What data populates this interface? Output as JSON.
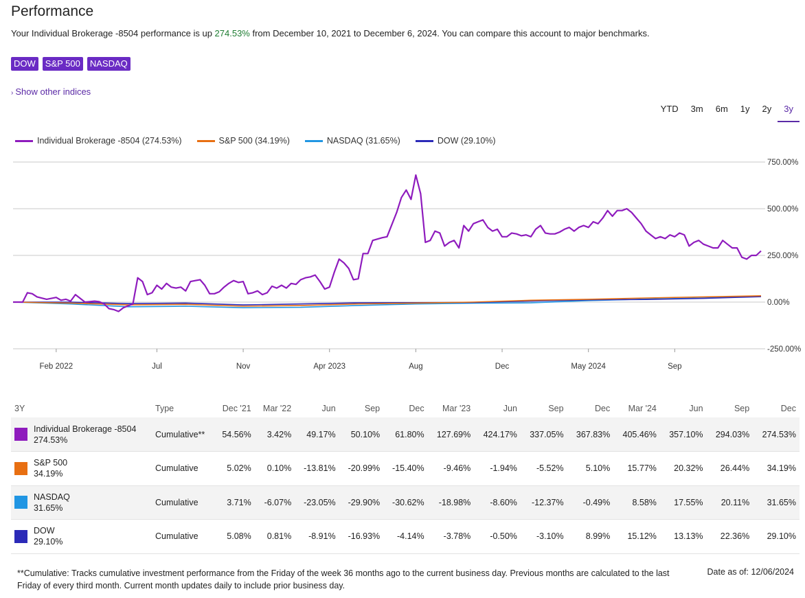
{
  "page": {
    "title": "Performance",
    "summary_prefix": "Your Individual Brokerage -8504 performance is up ",
    "summary_pct": "274.53%",
    "summary_suffix": " from December 10, 2021 to December 6, 2024. You can compare this account to major benchmarks.",
    "show_other": "Show other indices",
    "footnote": "**Cumulative: Tracks cumulative investment performance from the Friday of the week 36 months ago to the current business day. Previous months are calculated to the last Friday of every third month. Current month updates daily to include prior business day.",
    "date_as_of": "Date as of: 12/06/2024"
  },
  "chips": [
    "DOW",
    "S&P 500",
    "NASDAQ"
  ],
  "periods": [
    {
      "label": "YTD",
      "active": false
    },
    {
      "label": "3m",
      "active": false
    },
    {
      "label": "6m",
      "active": false
    },
    {
      "label": "1y",
      "active": false
    },
    {
      "label": "2y",
      "active": false
    },
    {
      "label": "3y",
      "active": true
    }
  ],
  "colors": {
    "account": "#8e1bbd",
    "sp500": "#e86f12",
    "nasdaq": "#2196e3",
    "dow": "#2b2ab8",
    "grid": "#c8c8c8"
  },
  "chart_data": {
    "type": "line",
    "yaxis": {
      "min": -250,
      "max": 750,
      "ticks": [
        750,
        500,
        250,
        0,
        -250
      ],
      "tick_labels": [
        "750.00%",
        "500.00%",
        "250.00%",
        "0.00%",
        "-250.00%"
      ]
    },
    "xaxis": {
      "min": 0,
      "max": 156,
      "ticks": [
        9,
        30,
        48,
        66,
        84,
        102,
        120,
        138
      ],
      "tick_labels": [
        "Feb 2022",
        "Jul",
        "Nov",
        "Apr 2023",
        "Aug",
        "Dec",
        "May 2024",
        "Sep"
      ]
    },
    "legend": [
      {
        "key": "account",
        "label": "Individual Brokerage -8504 (274.53%)"
      },
      {
        "key": "sp500",
        "label": "S&P 500 (34.19%)"
      },
      {
        "key": "nasdaq",
        "label": "NASDAQ (31.65%)"
      },
      {
        "key": "dow",
        "label": "DOW (29.10%)"
      }
    ],
    "series": [
      {
        "key": "account",
        "name": "Individual Brokerage -8504",
        "points": [
          [
            0,
            0
          ],
          [
            2,
            0
          ],
          [
            3,
            50
          ],
          [
            4,
            45
          ],
          [
            5,
            28
          ],
          [
            7,
            15
          ],
          [
            9,
            25
          ],
          [
            10,
            10
          ],
          [
            11,
            15
          ],
          [
            12,
            5
          ],
          [
            13,
            40
          ],
          [
            15,
            0
          ],
          [
            17,
            5
          ],
          [
            18,
            2
          ],
          [
            19,
            -10
          ],
          [
            20,
            -35
          ],
          [
            21,
            -40
          ],
          [
            22,
            -50
          ],
          [
            23,
            -30
          ],
          [
            25,
            -10
          ],
          [
            26,
            130
          ],
          [
            27,
            110
          ],
          [
            28,
            40
          ],
          [
            29,
            50
          ],
          [
            30,
            90
          ],
          [
            31,
            70
          ],
          [
            32,
            100
          ],
          [
            33,
            80
          ],
          [
            34,
            75
          ],
          [
            35,
            80
          ],
          [
            36,
            60
          ],
          [
            37,
            110
          ],
          [
            38,
            115
          ],
          [
            39,
            120
          ],
          [
            40,
            90
          ],
          [
            41,
            45
          ],
          [
            42,
            45
          ],
          [
            43,
            55
          ],
          [
            44,
            80
          ],
          [
            45,
            100
          ],
          [
            46,
            115
          ],
          [
            47,
            105
          ],
          [
            48,
            110
          ],
          [
            49,
            45
          ],
          [
            50,
            50
          ],
          [
            51,
            60
          ],
          [
            52,
            40
          ],
          [
            53,
            50
          ],
          [
            54,
            85
          ],
          [
            55,
            75
          ],
          [
            56,
            90
          ],
          [
            57,
            75
          ],
          [
            58,
            100
          ],
          [
            59,
            95
          ],
          [
            60,
            120
          ],
          [
            61,
            130
          ],
          [
            62,
            135
          ],
          [
            63,
            145
          ],
          [
            64,
            110
          ],
          [
            65,
            70
          ],
          [
            66,
            80
          ],
          [
            67,
            160
          ],
          [
            68,
            230
          ],
          [
            69,
            210
          ],
          [
            70,
            180
          ],
          [
            71,
            120
          ],
          [
            72,
            125
          ],
          [
            73,
            260
          ],
          [
            74,
            260
          ],
          [
            75,
            330
          ],
          [
            77,
            345
          ],
          [
            78,
            350
          ],
          [
            80,
            480
          ],
          [
            81,
            560
          ],
          [
            82,
            600
          ],
          [
            83,
            550
          ],
          [
            84,
            680
          ],
          [
            85,
            580
          ],
          [
            86,
            320
          ],
          [
            87,
            330
          ],
          [
            88,
            380
          ],
          [
            89,
            370
          ],
          [
            90,
            300
          ],
          [
            91,
            320
          ],
          [
            92,
            330
          ],
          [
            93,
            290
          ],
          [
            94,
            410
          ],
          [
            95,
            380
          ],
          [
            96,
            420
          ],
          [
            97,
            430
          ],
          [
            98,
            440
          ],
          [
            99,
            400
          ],
          [
            100,
            380
          ],
          [
            101,
            390
          ],
          [
            102,
            350
          ],
          [
            103,
            350
          ],
          [
            104,
            370
          ],
          [
            105,
            365
          ],
          [
            106,
            355
          ],
          [
            107,
            360
          ],
          [
            108,
            350
          ],
          [
            109,
            390
          ],
          [
            110,
            410
          ],
          [
            111,
            370
          ],
          [
            112,
            365
          ],
          [
            113,
            365
          ],
          [
            114,
            375
          ],
          [
            115,
            390
          ],
          [
            116,
            400
          ],
          [
            117,
            380
          ],
          [
            118,
            400
          ],
          [
            119,
            410
          ],
          [
            120,
            400
          ],
          [
            121,
            430
          ],
          [
            122,
            420
          ],
          [
            123,
            450
          ],
          [
            124,
            490
          ],
          [
            125,
            460
          ],
          [
            126,
            490
          ],
          [
            127,
            490
          ],
          [
            128,
            500
          ],
          [
            129,
            480
          ],
          [
            130,
            450
          ],
          [
            131,
            420
          ],
          [
            132,
            380
          ],
          [
            133,
            360
          ],
          [
            134,
            340
          ],
          [
            135,
            350
          ],
          [
            136,
            340
          ],
          [
            137,
            360
          ],
          [
            138,
            350
          ],
          [
            139,
            370
          ],
          [
            140,
            360
          ],
          [
            141,
            300
          ],
          [
            142,
            320
          ],
          [
            143,
            330
          ],
          [
            144,
            310
          ],
          [
            145,
            300
          ],
          [
            146,
            290
          ],
          [
            147,
            290
          ],
          [
            148,
            330
          ],
          [
            149,
            310
          ],
          [
            150,
            290
          ],
          [
            151,
            290
          ],
          [
            152,
            240
          ],
          [
            153,
            230
          ],
          [
            154,
            250
          ],
          [
            155,
            250
          ],
          [
            156,
            274
          ]
        ]
      },
      {
        "key": "sp500",
        "name": "S&P 500",
        "points": [
          [
            0,
            0
          ],
          [
            12,
            -5
          ],
          [
            24,
            -15
          ],
          [
            36,
            -12
          ],
          [
            48,
            -22
          ],
          [
            60,
            -18
          ],
          [
            72,
            -10
          ],
          [
            84,
            -5
          ],
          [
            96,
            0
          ],
          [
            108,
            10
          ],
          [
            120,
            15
          ],
          [
            132,
            22
          ],
          [
            144,
            28
          ],
          [
            156,
            34
          ]
        ]
      },
      {
        "key": "nasdaq",
        "name": "NASDAQ",
        "points": [
          [
            0,
            0
          ],
          [
            12,
            -10
          ],
          [
            24,
            -25
          ],
          [
            36,
            -22
          ],
          [
            48,
            -30
          ],
          [
            60,
            -28
          ],
          [
            72,
            -18
          ],
          [
            84,
            -10
          ],
          [
            96,
            -6
          ],
          [
            108,
            -4
          ],
          [
            120,
            8
          ],
          [
            132,
            16
          ],
          [
            144,
            22
          ],
          [
            156,
            32
          ]
        ]
      },
      {
        "key": "dow",
        "name": "DOW",
        "points": [
          [
            0,
            0
          ],
          [
            12,
            0
          ],
          [
            24,
            -8
          ],
          [
            36,
            -5
          ],
          [
            48,
            -15
          ],
          [
            60,
            -10
          ],
          [
            72,
            -4
          ],
          [
            84,
            -3
          ],
          [
            96,
            -2
          ],
          [
            108,
            6
          ],
          [
            120,
            12
          ],
          [
            132,
            14
          ],
          [
            144,
            20
          ],
          [
            156,
            29
          ]
        ]
      }
    ]
  },
  "table": {
    "header_label": "3Y",
    "type_label": "Type",
    "columns": [
      "Dec '21",
      "Mar '22",
      "Jun",
      "Sep",
      "Dec",
      "Mar '23",
      "Jun",
      "Sep",
      "Dec",
      "Mar '24",
      "Jun",
      "Sep",
      "Dec"
    ],
    "rows": [
      {
        "key": "account",
        "name": "Individual Brokerage -8504",
        "total": "274.53%",
        "type": "Cumulative**",
        "values": [
          "54.56%",
          "3.42%",
          "49.17%",
          "50.10%",
          "61.80%",
          "127.69%",
          "424.17%",
          "337.05%",
          "367.83%",
          "405.46%",
          "357.10%",
          "294.03%",
          "274.53%"
        ]
      },
      {
        "key": "sp500",
        "name": "S&P 500",
        "total": "34.19%",
        "type": "Cumulative",
        "values": [
          "5.02%",
          "0.10%",
          "-13.81%",
          "-20.99%",
          "-15.40%",
          "-9.46%",
          "-1.94%",
          "-5.52%",
          "5.10%",
          "15.77%",
          "20.32%",
          "26.44%",
          "34.19%"
        ]
      },
      {
        "key": "nasdaq",
        "name": "NASDAQ",
        "total": "31.65%",
        "type": "Cumulative",
        "values": [
          "3.71%",
          "-6.07%",
          "-23.05%",
          "-29.90%",
          "-30.62%",
          "-18.98%",
          "-8.60%",
          "-12.37%",
          "-0.49%",
          "8.58%",
          "17.55%",
          "20.11%",
          "31.65%"
        ]
      },
      {
        "key": "dow",
        "name": "DOW",
        "total": "29.10%",
        "type": "Cumulative",
        "values": [
          "5.08%",
          "0.81%",
          "-8.91%",
          "-16.93%",
          "-4.14%",
          "-3.78%",
          "-0.50%",
          "-3.10%",
          "8.99%",
          "15.12%",
          "13.13%",
          "22.36%",
          "29.10%"
        ]
      }
    ]
  }
}
